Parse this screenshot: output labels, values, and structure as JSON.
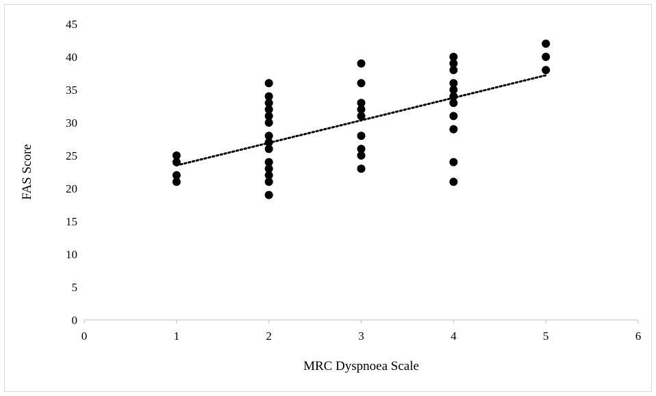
{
  "chart_data": {
    "type": "scatter",
    "title": "",
    "xlabel": "MRC Dyspnoea Scale",
    "ylabel": "FAS Score",
    "xlim": [
      0,
      6
    ],
    "ylim": [
      0,
      45
    ],
    "x_ticks": [
      0,
      1,
      2,
      3,
      4,
      5,
      6
    ],
    "y_ticks": [
      0,
      5,
      10,
      15,
      20,
      25,
      30,
      35,
      40,
      45
    ],
    "grid": false,
    "legend": "none",
    "marker_color": "#000000",
    "series": [
      {
        "points": [
          [
            1,
            25
          ],
          [
            1,
            24
          ],
          [
            1,
            22
          ],
          [
            1,
            21
          ],
          [
            2,
            36
          ],
          [
            2,
            34
          ],
          [
            2,
            33
          ],
          [
            2,
            32
          ],
          [
            2,
            31
          ],
          [
            2,
            30
          ],
          [
            2,
            28
          ],
          [
            2,
            27
          ],
          [
            2,
            26
          ],
          [
            2,
            24
          ],
          [
            2,
            23
          ],
          [
            2,
            22
          ],
          [
            2,
            21
          ],
          [
            2,
            19
          ],
          [
            3,
            39
          ],
          [
            3,
            36
          ],
          [
            3,
            33
          ],
          [
            3,
            32
          ],
          [
            3,
            31
          ],
          [
            3,
            28
          ],
          [
            3,
            26
          ],
          [
            3,
            25
          ],
          [
            3,
            23
          ],
          [
            4,
            40
          ],
          [
            4,
            39
          ],
          [
            4,
            38
          ],
          [
            4,
            36
          ],
          [
            4,
            35
          ],
          [
            4,
            34
          ],
          [
            4,
            33
          ],
          [
            4,
            31
          ],
          [
            4,
            29
          ],
          [
            4,
            24
          ],
          [
            4,
            21
          ],
          [
            5,
            42
          ],
          [
            5,
            40
          ],
          [
            5,
            38
          ]
        ]
      }
    ],
    "trendline": {
      "type": "linear",
      "style": "dotted",
      "x": [
        1,
        5
      ],
      "y": [
        23.5,
        37.2
      ]
    }
  }
}
